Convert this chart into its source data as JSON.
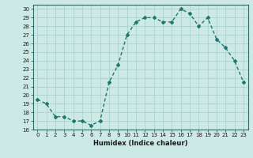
{
  "x": [
    0,
    1,
    2,
    3,
    4,
    5,
    6,
    7,
    8,
    9,
    10,
    11,
    12,
    13,
    14,
    15,
    16,
    17,
    18,
    19,
    20,
    21,
    22,
    23
  ],
  "y": [
    19.5,
    19.0,
    17.5,
    17.5,
    17.0,
    17.0,
    16.5,
    17.0,
    21.5,
    23.5,
    27.0,
    28.5,
    29.0,
    29.0,
    28.5,
    28.5,
    30.0,
    29.5,
    28.0,
    29.0,
    26.5,
    25.5,
    24.0,
    21.5
  ],
  "line_color": "#1a7a6e",
  "marker": "D",
  "marker_size": 2.0,
  "bg_color": "#cce9e5",
  "grid_color": "#aad4cf",
  "xlabel": "Humidex (Indice chaleur)",
  "xlim": [
    -0.5,
    23.5
  ],
  "ylim": [
    16,
    30.5
  ],
  "yticks": [
    16,
    17,
    18,
    19,
    20,
    21,
    22,
    23,
    24,
    25,
    26,
    27,
    28,
    29,
    30
  ],
  "xticks": [
    0,
    1,
    2,
    3,
    4,
    5,
    6,
    7,
    8,
    9,
    10,
    11,
    12,
    13,
    14,
    15,
    16,
    17,
    18,
    19,
    20,
    21,
    22,
    23
  ],
  "tick_fontsize": 5.0,
  "label_fontsize": 6.0,
  "line_width": 1.0
}
